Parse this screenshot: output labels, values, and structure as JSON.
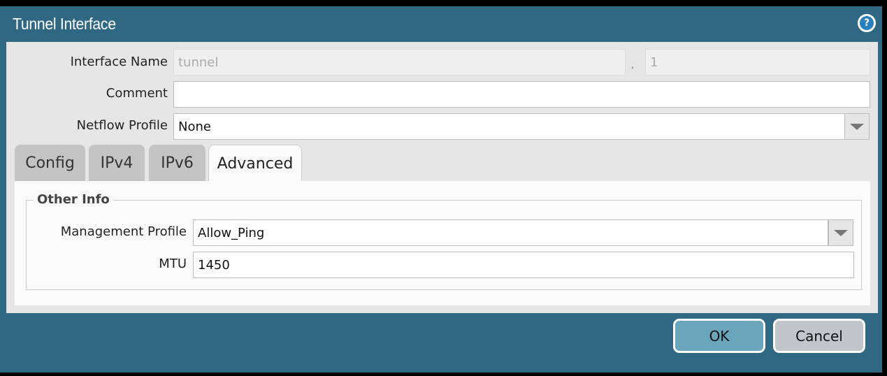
{
  "dialog": {
    "title": "Tunnel Interface",
    "help_icon": "help-icon"
  },
  "form": {
    "interface_name": {
      "label": "Interface Name",
      "value": "tunnel",
      "separator": ".",
      "suffix": "1"
    },
    "comment": {
      "label": "Comment",
      "value": ""
    },
    "netflow_profile": {
      "label": "Netflow Profile",
      "value": "None"
    }
  },
  "tabs": [
    {
      "label": "Config"
    },
    {
      "label": "IPv4"
    },
    {
      "label": "IPv6"
    },
    {
      "label": "Advanced",
      "active": true
    }
  ],
  "advanced": {
    "section_title": "Other Info",
    "management_profile": {
      "label": "Management Profile",
      "value": "Allow_Ping"
    },
    "mtu": {
      "label": "MTU",
      "value": "1450"
    }
  },
  "buttons": {
    "ok": "OK",
    "cancel": "Cancel"
  },
  "colors": {
    "titlebar": "#306884",
    "ok": "#6aa5bb",
    "cancel": "#c2c5ca"
  }
}
